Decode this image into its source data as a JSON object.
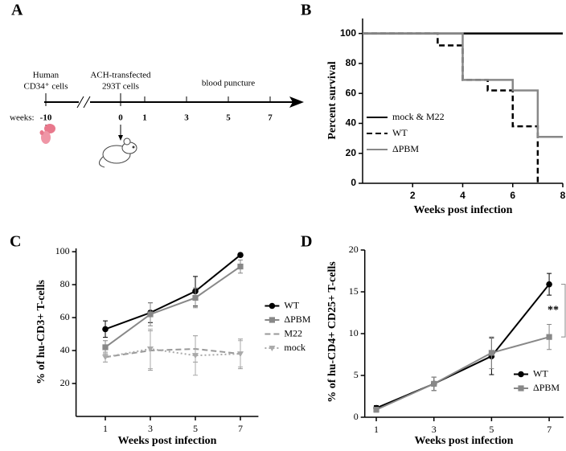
{
  "panel_labels": [
    "A",
    "B",
    "C",
    "D"
  ],
  "timeline": {
    "events": [
      [
        "Human",
        "CD34⁺ cells"
      ],
      [
        "ACH-transfected",
        "293T cells"
      ],
      [
        "blood puncture"
      ]
    ],
    "weeks_label": "weeks:",
    "ticks": [
      "-10",
      "0",
      "1",
      "3",
      "5",
      "7"
    ]
  },
  "chart_data": [
    {
      "type": "line",
      "step": true,
      "xlabel": "Weeks post infection",
      "ylabel": "Percent survival",
      "xlim": [
        0,
        8
      ],
      "xticks": [
        2,
        4,
        6,
        8
      ],
      "ylim": [
        0,
        110
      ],
      "yticks": [
        0,
        20,
        40,
        60,
        80,
        100
      ],
      "legend": "lower left",
      "series": [
        {
          "name": "mock & M22",
          "color": "#000000",
          "line_style": "solid",
          "x": [
            0,
            8
          ],
          "values": [
            100,
            100
          ]
        },
        {
          "name": "WT",
          "color": "#000000",
          "line_style": "dashed",
          "x": [
            0,
            3,
            4,
            5,
            6,
            7
          ],
          "values": [
            100,
            92,
            69,
            62,
            38,
            0
          ]
        },
        {
          "name": "ΔPBM",
          "color": "#888888",
          "line_style": "solid",
          "x": [
            0,
            4,
            6,
            7,
            8
          ],
          "values": [
            100,
            69,
            62,
            31,
            31
          ]
        }
      ]
    },
    {
      "type": "line",
      "xlabel": "Weeks post infection",
      "ylabel": "% of hu-CD3+ T-cells",
      "x": [
        1,
        3,
        5,
        7
      ],
      "xlim": [
        -0.3,
        7.8
      ],
      "xticks": [
        1,
        3,
        5,
        7
      ],
      "ylim": [
        0,
        102
      ],
      "yticks": [
        20,
        40,
        60,
        80,
        100
      ],
      "legend": "right",
      "series": [
        {
          "name": "WT",
          "color": "#000000",
          "line_style": "solid",
          "marker": "circle",
          "values": [
            53,
            63,
            76,
            98
          ],
          "errors": [
            5,
            6,
            9,
            1
          ]
        },
        {
          "name": "ΔPBM",
          "color": "#888888",
          "line_style": "solid",
          "marker": "square",
          "values": [
            42,
            62,
            72,
            91
          ],
          "errors": [
            4,
            7,
            6,
            4
          ]
        },
        {
          "name": "M22",
          "color": "#999999",
          "line_style": "dashed",
          "marker": "none",
          "values": [
            36,
            40,
            41,
            38
          ],
          "errors": [
            3,
            12,
            8,
            9
          ]
        },
        {
          "name": "mock",
          "color": "#aaaaaa",
          "line_style": "dotted",
          "marker": "triangle-down",
          "values": [
            36,
            41,
            37,
            38
          ],
          "errors": [
            3,
            12,
            12,
            8
          ]
        }
      ]
    },
    {
      "type": "line",
      "xlabel": "Weeks post infection",
      "ylabel": "% of hu-CD4+ CD25+ T-cells",
      "x": [
        1,
        3,
        5,
        7
      ],
      "xlim": [
        0.6,
        7.5
      ],
      "xticks": [
        1,
        3,
        5,
        7
      ],
      "ylim": [
        0,
        20
      ],
      "yticks": [
        0,
        5,
        10,
        15,
        20
      ],
      "legend": "lower right",
      "annotation": {
        "text": "**",
        "from": 9.6,
        "to": 15.9
      },
      "series": [
        {
          "name": "WT",
          "color": "#000000",
          "line_style": "solid",
          "marker": "circle",
          "values": [
            1.1,
            4.0,
            7.3,
            15.9
          ],
          "errors": [
            0.3,
            0.8,
            2.2,
            1.3
          ]
        },
        {
          "name": "ΔPBM",
          "color": "#888888",
          "line_style": "solid",
          "marker": "square",
          "values": [
            0.9,
            4.0,
            7.7,
            9.6
          ],
          "errors": [
            0.3,
            0.8,
            1.9,
            1.5
          ]
        }
      ]
    }
  ]
}
